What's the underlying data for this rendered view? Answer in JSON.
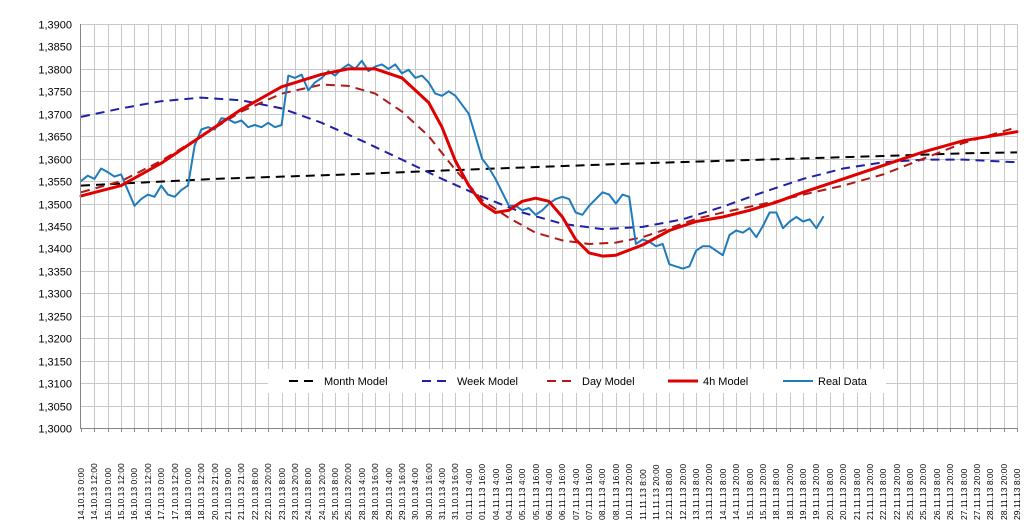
{
  "chart_data": {
    "type": "line",
    "title": "",
    "xlabel": "",
    "ylabel": "",
    "ylim": [
      1.3,
      1.39
    ],
    "yticks": [
      1.3,
      1.305,
      1.31,
      1.315,
      1.32,
      1.325,
      1.33,
      1.335,
      1.34,
      1.345,
      1.35,
      1.355,
      1.36,
      1.365,
      1.37,
      1.375,
      1.38,
      1.385,
      1.39
    ],
    "ytick_labels": [
      "1,3000",
      "1,3050",
      "1,3100",
      "1,3150",
      "1,3200",
      "1,3250",
      "1,3300",
      "1,3350",
      "1,3400",
      "1,3450",
      "1,3500",
      "1,3550",
      "1,3600",
      "1,3650",
      "1,3700",
      "1,3750",
      "1,3800",
      "1,3850",
      "1,3900"
    ],
    "x_labels": [
      "14.10.13 0:00",
      "14.10.13 12:00",
      "15.10.13 0:00",
      "15.10.13 12:00",
      "16.10.13 0:00",
      "16.10.13 12:00",
      "17.10.13 0:00",
      "17.10.13 12:00",
      "18.10.13 0:00",
      "18.10.13 12:00",
      "20.10.13 21:00",
      "21.10.13 9:00",
      "21.10.13 21:00",
      "22.10.13 8:00",
      "22.10.13 20:00",
      "23.10.13 8:00",
      "23.10.13 20:00",
      "24.10.13 8:00",
      "24.10.13 20:00",
      "25.10.13 8:00",
      "25.10.13 20:00",
      "28.10.13 4:00",
      "28.10.13 16:00",
      "29.10.13 4:00",
      "29.10.13 16:00",
      "30.10.13 4:00",
      "30.10.13 16:00",
      "31.10.13 4:00",
      "31.10.13 16:00",
      "01.11.13 4:00",
      "01.11.13 16:00",
      "04.11.13 4:00",
      "04.11.13 16:00",
      "05.11.13 4:00",
      "05.11.13 16:00",
      "06.11.13 4:00",
      "06.11.13 16:00",
      "07.11.13 4:00",
      "07.11.13 16:00",
      "08.11.13 4:00",
      "08.11.13 16:00",
      "10.11.13 20:00",
      "11.11.13 8:00",
      "11.11.13 20:00",
      "12.11.13 8:00",
      "12.11.13 20:00",
      "13.11.13 8:00",
      "13.11.13 20:00",
      "14.11.13 8:00",
      "14.11.13 20:00",
      "15.11.13 8:00",
      "15.11.13 20:00",
      "18.11.13 8:00",
      "18.11.13 20:00",
      "19.11.13 8:00",
      "19.11.13 20:00",
      "20.11.13 8:00",
      "20.11.13 20:00",
      "21.11.13 8:00",
      "21.11.13 20:00",
      "22.11.13 8:00",
      "22.11.13 20:00",
      "25.11.13 8:00",
      "25.11.13 20:00",
      "26.11.13 8:00",
      "26.11.13 20:00",
      "27.11.13 8:00",
      "27.11.13 20:00",
      "28.11.13 8:00",
      "28.11.13 20:00",
      "29.11.13 8:00"
    ],
    "x_range": [
      0,
      70
    ],
    "grid": true,
    "legend_position": "bottom",
    "series": [
      {
        "name": "Month Model",
        "color": "#000000",
        "dash": "dashed",
        "points": [
          [
            0,
            1.354
          ],
          [
            10,
            1.3555
          ],
          [
            20,
            1.3565
          ],
          [
            30,
            1.3577
          ],
          [
            40,
            1.3588
          ],
          [
            50,
            1.3597
          ],
          [
            60,
            1.3606
          ],
          [
            66,
            1.3612
          ],
          [
            70,
            1.3614
          ]
        ]
      },
      {
        "name": "Week Model",
        "color": "#1f1fa8",
        "dash": "dashed",
        "points": [
          [
            0,
            1.3693
          ],
          [
            3,
            1.3712
          ],
          [
            6,
            1.3728
          ],
          [
            9,
            1.3736
          ],
          [
            12,
            1.373
          ],
          [
            15,
            1.3712
          ],
          [
            18,
            1.368
          ],
          [
            21,
            1.364
          ],
          [
            24,
            1.3598
          ],
          [
            27,
            1.3555
          ],
          [
            30,
            1.3515
          ],
          [
            33,
            1.348
          ],
          [
            36,
            1.3455
          ],
          [
            39,
            1.3443
          ],
          [
            42,
            1.3448
          ],
          [
            45,
            1.3465
          ],
          [
            48,
            1.3493
          ],
          [
            51,
            1.3525
          ],
          [
            54,
            1.3555
          ],
          [
            57,
            1.3578
          ],
          [
            60,
            1.3592
          ],
          [
            63,
            1.3598
          ],
          [
            66,
            1.3598
          ],
          [
            70,
            1.3592
          ]
        ]
      },
      {
        "name": "Day Model",
        "color": "#b01818",
        "dash": "dashed",
        "points": [
          [
            0,
            1.3525
          ],
          [
            3,
            1.355
          ],
          [
            6,
            1.3595
          ],
          [
            9,
            1.365
          ],
          [
            12,
            1.3705
          ],
          [
            15,
            1.3745
          ],
          [
            18,
            1.3765
          ],
          [
            20,
            1.3762
          ],
          [
            22,
            1.3745
          ],
          [
            24,
            1.3705
          ],
          [
            26,
            1.365
          ],
          [
            28,
            1.3575
          ],
          [
            30,
            1.3508
          ],
          [
            32,
            1.3468
          ],
          [
            34,
            1.3435
          ],
          [
            36,
            1.3418
          ],
          [
            38,
            1.341
          ],
          [
            40,
            1.3413
          ],
          [
            42,
            1.3425
          ],
          [
            44,
            1.3445
          ],
          [
            46,
            1.3466
          ],
          [
            48,
            1.348
          ],
          [
            50,
            1.3493
          ],
          [
            52,
            1.3505
          ],
          [
            54,
            1.352
          ],
          [
            57,
            1.354
          ],
          [
            60,
            1.3565
          ],
          [
            63,
            1.36
          ],
          [
            66,
            1.3635
          ],
          [
            70,
            1.367
          ]
        ]
      },
      {
        "name": "4h Model",
        "color": "#e00000",
        "dash": "solid",
        "points": [
          [
            0,
            1.3517
          ],
          [
            3,
            1.354
          ],
          [
            6,
            1.359
          ],
          [
            9,
            1.365
          ],
          [
            12,
            1.371
          ],
          [
            15,
            1.376
          ],
          [
            18,
            1.3788
          ],
          [
            20,
            1.38
          ],
          [
            22,
            1.38
          ],
          [
            24,
            1.378
          ],
          [
            26,
            1.3725
          ],
          [
            27,
            1.367
          ],
          [
            28,
            1.3595
          ],
          [
            29,
            1.354
          ],
          [
            30,
            1.35
          ],
          [
            31,
            1.348
          ],
          [
            32,
            1.3485
          ],
          [
            33,
            1.3505
          ],
          [
            34,
            1.3512
          ],
          [
            35,
            1.3505
          ],
          [
            36,
            1.347
          ],
          [
            37,
            1.342
          ],
          [
            38,
            1.339
          ],
          [
            39,
            1.3383
          ],
          [
            40,
            1.3385
          ],
          [
            42,
            1.3408
          ],
          [
            44,
            1.344
          ],
          [
            46,
            1.346
          ],
          [
            48,
            1.347
          ],
          [
            50,
            1.3485
          ],
          [
            52,
            1.3503
          ],
          [
            54,
            1.3525
          ],
          [
            57,
            1.3555
          ],
          [
            60,
            1.3585
          ],
          [
            63,
            1.3615
          ],
          [
            66,
            1.364
          ],
          [
            70,
            1.366
          ]
        ]
      },
      {
        "name": "Real Data",
        "color": "#1e7bbd",
        "dash": "solid",
        "points": [
          [
            0,
            1.355
          ],
          [
            0.5,
            1.3562
          ],
          [
            1,
            1.3555
          ],
          [
            1.5,
            1.3578
          ],
          [
            2,
            1.357
          ],
          [
            2.5,
            1.356
          ],
          [
            3,
            1.3565
          ],
          [
            3.5,
            1.353
          ],
          [
            4,
            1.3495
          ],
          [
            4.5,
            1.351
          ],
          [
            5,
            1.352
          ],
          [
            5.5,
            1.3515
          ],
          [
            6,
            1.354
          ],
          [
            6.5,
            1.352
          ],
          [
            7,
            1.3515
          ],
          [
            7.5,
            1.353
          ],
          [
            8,
            1.354
          ],
          [
            8.5,
            1.363
          ],
          [
            9,
            1.3665
          ],
          [
            9.5,
            1.367
          ],
          [
            10,
            1.3665
          ],
          [
            10.5,
            1.369
          ],
          [
            11,
            1.3688
          ],
          [
            11.5,
            1.368
          ],
          [
            12,
            1.3685
          ],
          [
            12.5,
            1.367
          ],
          [
            13,
            1.3675
          ],
          [
            13.5,
            1.367
          ],
          [
            14,
            1.368
          ],
          [
            14.5,
            1.367
          ],
          [
            15,
            1.3675
          ],
          [
            15.5,
            1.3785
          ],
          [
            16,
            1.378
          ],
          [
            16.5,
            1.3787
          ],
          [
            17,
            1.3752
          ],
          [
            17.5,
            1.377
          ],
          [
            18,
            1.378
          ],
          [
            18.5,
            1.3795
          ],
          [
            19,
            1.3785
          ],
          [
            19.5,
            1.38
          ],
          [
            20,
            1.381
          ],
          [
            20.5,
            1.38
          ],
          [
            21,
            1.3818
          ],
          [
            21.5,
            1.3795
          ],
          [
            22,
            1.3805
          ],
          [
            22.5,
            1.381
          ],
          [
            23,
            1.38
          ],
          [
            23.5,
            1.381
          ],
          [
            24,
            1.379
          ],
          [
            24.5,
            1.3798
          ],
          [
            25,
            1.378
          ],
          [
            25.5,
            1.3785
          ],
          [
            26,
            1.377
          ],
          [
            26.5,
            1.3745
          ],
          [
            27,
            1.374
          ],
          [
            27.5,
            1.375
          ],
          [
            28,
            1.374
          ],
          [
            28.5,
            1.372
          ],
          [
            29,
            1.37
          ],
          [
            29.5,
            1.365
          ],
          [
            30,
            1.36
          ],
          [
            30.5,
            1.358
          ],
          [
            31,
            1.3555
          ],
          [
            31.5,
            1.3525
          ],
          [
            32,
            1.3495
          ],
          [
            32.5,
            1.3495
          ],
          [
            33,
            1.3485
          ],
          [
            33.5,
            1.349
          ],
          [
            34,
            1.3475
          ],
          [
            34.5,
            1.3485
          ],
          [
            35,
            1.35
          ],
          [
            35.5,
            1.351
          ],
          [
            36,
            1.3515
          ],
          [
            36.5,
            1.351
          ],
          [
            37,
            1.348
          ],
          [
            37.5,
            1.3475
          ],
          [
            38,
            1.3495
          ],
          [
            38.5,
            1.351
          ],
          [
            39,
            1.3525
          ],
          [
            39.5,
            1.352
          ],
          [
            40,
            1.35
          ],
          [
            40.5,
            1.352
          ],
          [
            41,
            1.3515
          ],
          [
            41.5,
            1.341
          ],
          [
            42,
            1.342
          ],
          [
            42.5,
            1.3415
          ],
          [
            43,
            1.3405
          ],
          [
            43.5,
            1.341
          ],
          [
            44,
            1.3365
          ],
          [
            44.5,
            1.336
          ],
          [
            45,
            1.3355
          ],
          [
            45.5,
            1.336
          ],
          [
            46,
            1.3395
          ],
          [
            46.5,
            1.3405
          ],
          [
            47,
            1.3405
          ],
          [
            47.5,
            1.3395
          ],
          [
            48,
            1.3385
          ],
          [
            48.5,
            1.343
          ],
          [
            49,
            1.344
          ],
          [
            49.5,
            1.3435
          ],
          [
            50,
            1.3445
          ],
          [
            50.5,
            1.3425
          ],
          [
            51,
            1.345
          ],
          [
            51.5,
            1.348
          ],
          [
            52,
            1.348
          ],
          [
            52.5,
            1.3445
          ],
          [
            53,
            1.346
          ],
          [
            53.5,
            1.347
          ],
          [
            54,
            1.346
          ],
          [
            54.5,
            1.3465
          ],
          [
            55,
            1.3445
          ],
          [
            55.5,
            1.347
          ]
        ]
      }
    ]
  }
}
